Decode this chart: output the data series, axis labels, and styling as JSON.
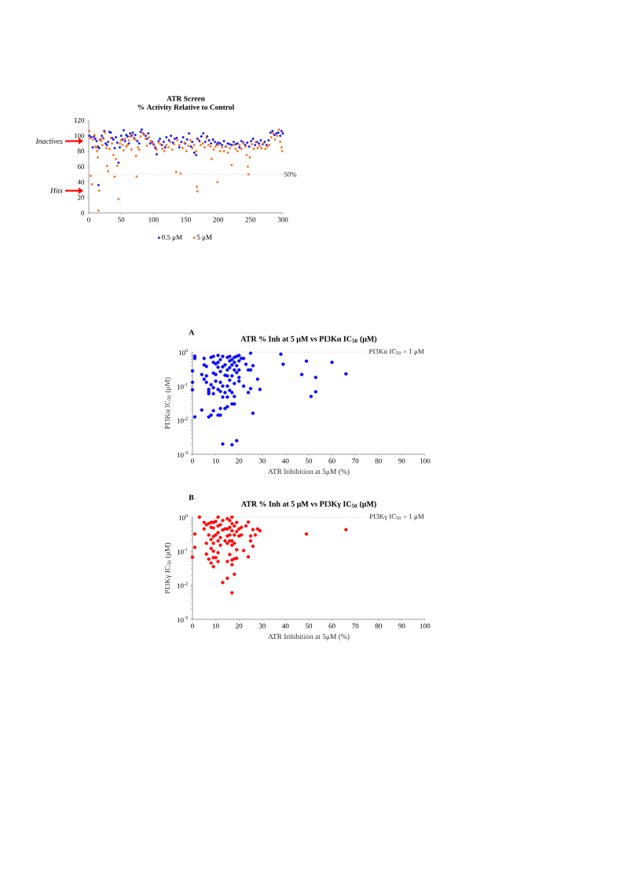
{
  "chart_data": [
    {
      "type": "scatter",
      "title": "ATR  Screen",
      "subtitle": "% Activity Relative to  Control",
      "xlim": [
        0,
        300
      ],
      "xticks": [
        0,
        50,
        100,
        150,
        200,
        250,
        300
      ],
      "ylim": [
        0,
        120
      ],
      "yticks": [
        0,
        20,
        40,
        60,
        80,
        100,
        120
      ],
      "legend": "bottom",
      "ref_lines": [
        {
          "axis": "y",
          "value": 50,
          "label": "50%",
          "line_style": "dotted"
        }
      ],
      "annotations": [
        "Inactives",
        "Hits"
      ],
      "series": [
        {
          "name": "0.5 μM",
          "color": "#1414f0",
          "x": [
            1,
            4,
            6,
            8,
            10,
            12,
            14,
            15,
            16,
            18,
            20,
            22,
            24,
            26,
            28,
            30,
            32,
            34,
            36,
            38,
            40,
            42,
            44,
            46,
            48,
            50,
            52,
            54,
            56,
            58,
            60,
            62,
            64,
            66,
            68,
            70,
            72,
            75,
            78,
            80,
            82,
            85,
            88,
            90,
            92,
            95,
            98,
            100,
            103,
            105,
            108,
            110,
            113,
            116,
            118,
            120,
            124,
            127,
            130,
            133,
            136,
            140,
            143,
            146,
            149,
            152,
            155,
            158,
            160,
            163,
            166,
            168,
            171,
            174,
            177,
            180,
            183,
            186,
            189,
            192,
            195,
            198,
            200,
            203,
            206,
            209,
            212,
            215,
            218,
            221,
            224,
            227,
            230,
            233,
            236,
            239,
            242,
            245,
            248,
            251,
            254,
            257,
            260,
            263,
            266,
            269,
            272,
            275,
            278,
            281,
            284,
            287,
            290,
            293,
            296,
            298,
            300
          ],
          "values": [
            100,
            98,
            85,
            99,
            96,
            93,
            86,
            36,
            84,
            95,
            100,
            97,
            106,
            90,
            88,
            92,
            105,
            104,
            97,
            95,
            84,
            98,
            91,
            65,
            85,
            100,
            95,
            107,
            93,
            101,
            99,
            90,
            103,
            100,
            104,
            97,
            101,
            93,
            90,
            105,
            108,
            102,
            100,
            96,
            103,
            90,
            92,
            89,
            84,
            76,
            93,
            96,
            88,
            92,
            85,
            98,
            94,
            100,
            91,
            96,
            97,
            85,
            92,
            98,
            90,
            95,
            103,
            86,
            92,
            78,
            75,
            96,
            93,
            99,
            103,
            92,
            99,
            94,
            90,
            95,
            92,
            89,
            91,
            90,
            88,
            93,
            86,
            90,
            89,
            88,
            92,
            89,
            90,
            85,
            93,
            91,
            88,
            91,
            86,
            93,
            96,
            88,
            92,
            90,
            94,
            89,
            92,
            88,
            94,
            104,
            106,
            101,
            103,
            104,
            100,
            106,
            103
          ]
        },
        {
          "name": "5 μM",
          "color": "#f7741f",
          "x": [
            1,
            2,
            3,
            5,
            7,
            9,
            10,
            12,
            13,
            14,
            15,
            16,
            17,
            19,
            21,
            23,
            25,
            27,
            28,
            30,
            32,
            34,
            36,
            38,
            40,
            42,
            44,
            46,
            48,
            50,
            52,
            54,
            56,
            58,
            60,
            62,
            64,
            66,
            68,
            70,
            72,
            73,
            74,
            76,
            78,
            80,
            83,
            86,
            88,
            90,
            93,
            96,
            99,
            102,
            105,
            108,
            111,
            114,
            117,
            120,
            123,
            126,
            129,
            132,
            135,
            137,
            140,
            142,
            145,
            148,
            151,
            154,
            157,
            160,
            163,
            166,
            167,
            168,
            170,
            173,
            176,
            179,
            182,
            185,
            188,
            190,
            193,
            196,
            199,
            200,
            203,
            206,
            209,
            212,
            215,
            218,
            221,
            224,
            227,
            230,
            233,
            236,
            239,
            242,
            244,
            246,
            247,
            249,
            252,
            255,
            258,
            261,
            264,
            267,
            270,
            273,
            276,
            279,
            282,
            285,
            288,
            291,
            294,
            296,
            298,
            299
          ],
          "values": [
            106,
            97,
            48,
            37,
            95,
            101,
            86,
            85,
            80,
            72,
            3,
            29,
            95,
            93,
            88,
            96,
            104,
            84,
            61,
            54,
            83,
            97,
            90,
            75,
            47,
            70,
            61,
            18,
            90,
            94,
            88,
            81,
            96,
            86,
            88,
            94,
            99,
            82,
            102,
            96,
            95,
            74,
            47,
            85,
            82,
            99,
            104,
            101,
            96,
            87,
            98,
            93,
            90,
            87,
            82,
            91,
            89,
            83,
            80,
            88,
            85,
            92,
            82,
            89,
            53,
            94,
            88,
            51,
            84,
            91,
            80,
            87,
            94,
            84,
            88,
            80,
            34,
            28,
            95,
            88,
            90,
            85,
            97,
            88,
            86,
            70,
            82,
            86,
            40,
            88,
            80,
            85,
            80,
            86,
            78,
            84,
            62,
            88,
            83,
            80,
            88,
            83,
            90,
            86,
            75,
            60,
            50,
            72,
            89,
            83,
            92,
            84,
            87,
            84,
            90,
            83,
            86,
            88,
            98,
            103,
            95,
            100,
            108,
            92,
            85,
            80
          ]
        }
      ]
    },
    {
      "type": "scatter",
      "title": "ATR % Inh at 5 μM vs PI3Kα IC$_{50}$ (μM)",
      "xlabel": "ATR Inhibition at 5μM (%)",
      "ylabel": "PI3Kα IC$_{50}$ (μM)",
      "annotations": [
        "A"
      ],
      "log": "y",
      "color": "#0a0aff",
      "xlim": [
        0,
        100
      ],
      "xticks": [
        0,
        10,
        20,
        30,
        40,
        50,
        60,
        70,
        80,
        90,
        100
      ],
      "ylim": [
        0.001,
        1
      ],
      "yticks": [
        {
          "value": 0.001,
          "label": "10$^{-3}$"
        },
        {
          "value": 0.01,
          "label": "10$^{-2}$"
        },
        {
          "value": 0.1,
          "label": "10$^{-1}$"
        },
        {
          "value": 1,
          "label": "10$^{0}$"
        }
      ],
      "ref_lines": [
        {
          "axis": "y",
          "value": 1,
          "label": "PI3Kα IC$_{50}$ = 1 μM",
          "line_style": "dotted"
        }
      ],
      "x": [
        0,
        0,
        0,
        1,
        1,
        1,
        4,
        4,
        5,
        5,
        6,
        5,
        6,
        6,
        7,
        7,
        7,
        7,
        8,
        8,
        8,
        9,
        9,
        9,
        9,
        9,
        9,
        10,
        10,
        10,
        11,
        11,
        11,
        11,
        11,
        12,
        12,
        12,
        12,
        12,
        12,
        13,
        13,
        13,
        13,
        13,
        14,
        14,
        14,
        14,
        15,
        15,
        15,
        15,
        15,
        15,
        16,
        16,
        16,
        16,
        16,
        17,
        17,
        17,
        17,
        17,
        17,
        18,
        18,
        18,
        18,
        18,
        18,
        19,
        19,
        19,
        19,
        20,
        20,
        20,
        20,
        20,
        21,
        22,
        22,
        23,
        24,
        24,
        25,
        25,
        25,
        26,
        26,
        28,
        29,
        38,
        39,
        47,
        49,
        51,
        53,
        53,
        60,
        66
      ],
      "values": [
        0.28,
        0.13,
        0.078,
        0.76,
        0.65,
        0.0125,
        0.02,
        0.22,
        0.65,
        0.42,
        0.38,
        0.16,
        0.13,
        0.2,
        0.08,
        0.068,
        0.06,
        0.0125,
        0.014,
        0.7,
        0.11,
        0.75,
        0.5,
        0.24,
        0.09,
        0.06,
        0.019,
        0.22,
        0.14,
        0.45,
        0.8,
        0.5,
        0.36,
        0.08,
        0.014,
        0.6,
        0.27,
        0.13,
        0.07,
        0.022,
        0.014,
        0.75,
        0.37,
        0.1,
        0.048,
        0.002,
        0.42,
        0.21,
        0.065,
        0.022,
        0.7,
        0.3,
        0.2,
        0.1,
        0.048,
        0.025,
        0.75,
        0.55,
        0.35,
        0.15,
        0.075,
        0.6,
        0.42,
        0.2,
        0.065,
        0.03,
        0.0019,
        0.7,
        0.5,
        0.3,
        0.12,
        0.05,
        0.03,
        0.75,
        0.4,
        0.25,
        0.0025,
        0.8,
        0.55,
        0.3,
        0.18,
        0.14,
        0.65,
        0.65,
        0.1,
        0.44,
        0.3,
        0.065,
        0.93,
        0.3,
        0.085,
        0.4,
        0.016,
        0.16,
        0.08,
        0.87,
        0.44,
        0.22,
        0.54,
        0.05,
        0.18,
        0.068,
        0.5,
        0.23
      ]
    },
    {
      "type": "scatter",
      "title": "ATR % Inh at 5 μM vs PI3Kγ IC$_{50}$ (μM)",
      "xlabel": "ATR Inhibition at 5μM (%)",
      "ylabel": "PI3Kγ IC$_{50}$ (μM)",
      "annotations": [
        "B"
      ],
      "log": "y",
      "color": "#ff0a0a",
      "xlim": [
        0,
        100
      ],
      "xticks": [
        0,
        10,
        20,
        30,
        40,
        50,
        60,
        70,
        80,
        90,
        100
      ],
      "ylim": [
        0.001,
        1
      ],
      "yticks": [
        {
          "value": 0.001,
          "label": "10$^{-3}$"
        },
        {
          "value": 0.01,
          "label": "10$^{-2}$"
        },
        {
          "value": 0.1,
          "label": "10$^{-1}$"
        },
        {
          "value": 1,
          "label": "10$^{0}$"
        }
      ],
      "ref_lines": [
        {
          "axis": "y",
          "value": 1,
          "label": "PI3Kγ IC$_{50}$ = 1 μM",
          "line_style": "dotted"
        }
      ],
      "x": [
        0,
        1,
        1,
        3,
        5,
        5,
        6,
        6,
        6,
        7,
        7,
        7,
        8,
        8,
        8,
        8,
        8,
        9,
        9,
        9,
        9,
        9,
        9,
        9,
        10,
        10,
        10,
        11,
        11,
        11,
        11,
        11,
        11,
        12,
        12,
        12,
        13,
        13,
        13,
        14,
        14,
        15,
        15,
        15,
        15,
        15,
        15,
        16,
        16,
        16,
        16,
        16,
        17,
        17,
        17,
        17,
        17,
        17,
        17,
        17,
        18,
        18,
        18,
        18,
        18,
        19,
        19,
        19,
        19,
        20,
        20,
        21,
        21,
        22,
        23,
        24,
        24,
        25,
        25,
        26,
        26,
        27,
        28,
        29,
        49,
        66
      ],
      "values": [
        0.067,
        0.13,
        0.32,
        1.0,
        0.7,
        0.45,
        0.6,
        0.17,
        0.082,
        0.65,
        0.3,
        0.058,
        0.7,
        0.5,
        0.22,
        0.12,
        0.045,
        0.7,
        0.48,
        0.27,
        0.17,
        0.1,
        0.065,
        0.035,
        0.75,
        0.3,
        0.065,
        1.0,
        0.55,
        0.35,
        0.2,
        0.09,
        0.05,
        0.6,
        0.25,
        0.15,
        0.8,
        0.42,
        0.012,
        0.45,
        0.2,
        0.9,
        0.45,
        0.28,
        0.17,
        0.05,
        0.016,
        0.8,
        0.5,
        0.3,
        0.2,
        0.08,
        1.0,
        0.65,
        0.4,
        0.2,
        0.15,
        0.055,
        0.04,
        0.006,
        0.55,
        0.3,
        0.17,
        0.06,
        0.021,
        0.7,
        0.38,
        0.11,
        0.062,
        0.45,
        0.28,
        0.5,
        0.3,
        0.105,
        0.55,
        0.72,
        0.068,
        0.28,
        0.2,
        0.43,
        0.14,
        0.3,
        0.45,
        0.4,
        0.32,
        0.43
      ]
    }
  ]
}
